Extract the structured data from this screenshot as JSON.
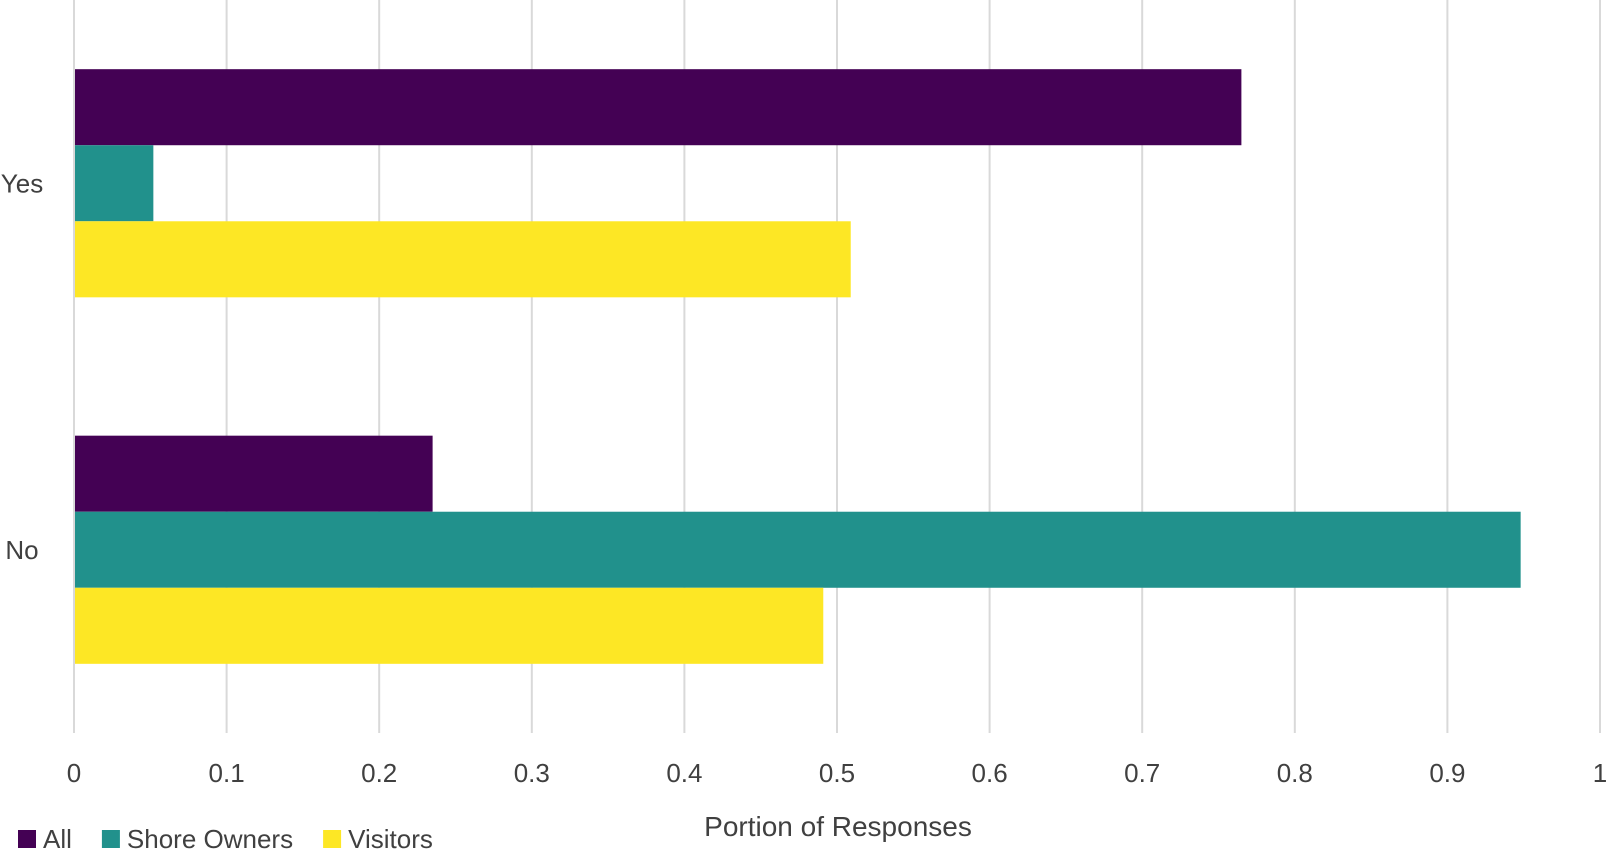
{
  "chart_data": {
    "type": "bar",
    "orientation": "horizontal",
    "categories": [
      "Yes",
      "No"
    ],
    "series": [
      {
        "name": "All",
        "color": "#440154",
        "values": [
          0.765,
          0.235
        ]
      },
      {
        "name": "Shore Owners",
        "color": "#21918c",
        "values": [
          0.052,
          0.948
        ]
      },
      {
        "name": "Visitors",
        "color": "#fde725",
        "values": [
          0.509,
          0.491
        ]
      }
    ],
    "xlabel": "Portion of Responses",
    "xlim": [
      0,
      1
    ],
    "xticks": [
      "0",
      "0.1",
      "0.2",
      "0.3",
      "0.4",
      "0.5",
      "0.6",
      "0.7",
      "0.8",
      "0.9",
      "1"
    ],
    "grid": "vertical",
    "legend": "bottom-left"
  }
}
